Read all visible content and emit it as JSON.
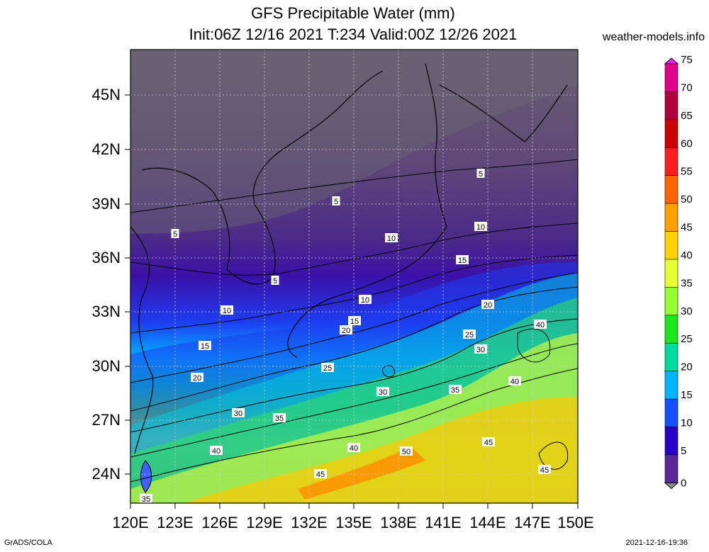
{
  "title_line1": "GFS Precipitable Water (mm)",
  "title_line2": "Init:06Z 12/16 2021 T:234 Valid:00Z 12/26 2021",
  "site": "weather-models.info",
  "lat_labels": [
    "45N",
    "42N",
    "39N",
    "36N",
    "33N",
    "30N",
    "27N",
    "24N"
  ],
  "lon_labels": [
    "120E",
    "123E",
    "126E",
    "129E",
    "132E",
    "135E",
    "138E",
    "141E",
    "144E",
    "147E",
    "150E"
  ],
  "colorbar": {
    "labels": [
      "75",
      "70",
      "65",
      "60",
      "55",
      "50",
      "45",
      "40",
      "35",
      "30",
      "25",
      "20",
      "15",
      "10",
      "5",
      "0"
    ],
    "colors": [
      "#f01eff",
      "#e0008c",
      "#b0003c",
      "#cc0000",
      "#ff1e1e",
      "#ff6400",
      "#ffa000",
      "#ffd200",
      "#e6ff32",
      "#96ff32",
      "#1ee61e",
      "#00dca0",
      "#00b4ff",
      "#1450ff",
      "#2800c8",
      "#5a2896",
      "#8c8c8c"
    ]
  },
  "contour_labels": [
    "5",
    "5",
    "5",
    "5",
    "10",
    "10",
    "10",
    "10",
    "15",
    "15",
    "15",
    "20",
    "20",
    "20",
    "25",
    "25",
    "30",
    "30",
    "30",
    "35",
    "35",
    "35",
    "40",
    "40",
    "40",
    "40",
    "45",
    "45",
    "45",
    "50"
  ],
  "footer_left": "GrADS/COLA",
  "footer_right": "2021-12-16-19:36"
}
